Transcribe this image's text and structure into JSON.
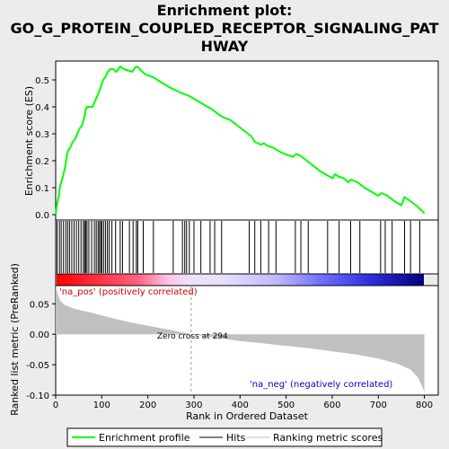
{
  "chart_data": {
    "type": "line",
    "title_lines": [
      "Enrichment plot:",
      "GO_G_PROTEIN_COUPLED_RECEPTOR_SIGNALING_PAT",
      "HWAY"
    ],
    "xlabel": "Rank in Ordered Dataset",
    "xlim": [
      0,
      830
    ],
    "x_ticks": [
      0,
      100,
      200,
      300,
      400,
      500,
      600,
      700,
      800
    ],
    "es_panel": {
      "ylabel": "Enrichment score (ES)",
      "ylim": [
        -0.02,
        0.57
      ],
      "y_ticks": [
        0.0,
        0.1,
        0.2,
        0.3,
        0.4,
        0.5
      ],
      "y_tick_labels": [
        "0.0",
        "0.1",
        "0.2",
        "0.3",
        "0.4",
        "0.5"
      ],
      "series_name": "Enrichment profile",
      "color": "#00ff00",
      "x": [
        0,
        3,
        7,
        10,
        14,
        17,
        21,
        24,
        28,
        32,
        37,
        42,
        47,
        52,
        57,
        62,
        65,
        68,
        72,
        80,
        85,
        90,
        95,
        99,
        103,
        108,
        113,
        118,
        125,
        132,
        140,
        148,
        157,
        166,
        172,
        177,
        185,
        195,
        212,
        230,
        250,
        275,
        290,
        300,
        320,
        340,
        355,
        365,
        380,
        395,
        410,
        425,
        432,
        438,
        445,
        452,
        460,
        470,
        480,
        490,
        497,
        505,
        515,
        522,
        530,
        545,
        560,
        575,
        590,
        601,
        606,
        615,
        625,
        635,
        641,
        655,
        670,
        690,
        700,
        706,
        720,
        735,
        750,
        757,
        770,
        785,
        800
      ],
      "y": [
        0.0,
        0.04,
        0.07,
        0.11,
        0.13,
        0.15,
        0.18,
        0.22,
        0.24,
        0.25,
        0.27,
        0.28,
        0.3,
        0.32,
        0.33,
        0.36,
        0.39,
        0.4,
        0.4,
        0.4,
        0.42,
        0.44,
        0.46,
        0.48,
        0.5,
        0.51,
        0.53,
        0.54,
        0.54,
        0.53,
        0.55,
        0.54,
        0.535,
        0.53,
        0.545,
        0.55,
        0.535,
        0.52,
        0.51,
        0.49,
        0.47,
        0.45,
        0.44,
        0.43,
        0.41,
        0.39,
        0.37,
        0.36,
        0.35,
        0.33,
        0.31,
        0.29,
        0.27,
        0.265,
        0.26,
        0.265,
        0.255,
        0.25,
        0.24,
        0.23,
        0.225,
        0.22,
        0.215,
        0.225,
        0.22,
        0.2,
        0.18,
        0.16,
        0.145,
        0.135,
        0.15,
        0.14,
        0.135,
        0.12,
        0.13,
        0.12,
        0.1,
        0.08,
        0.07,
        0.08,
        0.07,
        0.05,
        0.035,
        0.065,
        0.05,
        0.03,
        0.005
      ]
    },
    "hits": [
      3,
      8,
      12,
      17,
      22,
      26,
      30,
      35,
      40,
      45,
      50,
      55,
      60,
      63,
      65,
      68,
      72,
      78,
      84,
      88,
      92,
      95,
      98,
      100,
      104,
      108,
      112,
      116,
      122,
      130,
      140,
      145,
      160,
      168,
      175,
      178,
      190,
      212,
      255,
      275,
      280,
      284,
      290,
      300,
      315,
      335,
      345,
      360,
      420,
      432,
      445,
      462,
      478,
      520,
      532,
      548,
      590,
      615,
      640,
      660,
      705,
      715,
      730,
      757,
      770,
      790
    ],
    "ranked_metric": {
      "ylabel": "Ranked list metric (PreRanked)",
      "ylim": [
        -0.1,
        0.08
      ],
      "y_ticks": [
        0.05,
        0.0,
        -0.05,
        -0.1
      ],
      "y_tick_labels": [
        "0.05",
        "0.00",
        "-0.05",
        "-0.10"
      ],
      "zero_cross": 294,
      "zero_cross_label": "Zero cross at 294",
      "pos_label": "'na_pos' (positively correlated)",
      "neg_label": "'na_neg' (negatively correlated)",
      "x": [
        0,
        5,
        10,
        20,
        40,
        80,
        120,
        160,
        200,
        250,
        294,
        350,
        400,
        450,
        500,
        550,
        600,
        650,
        700,
        740,
        770,
        785,
        795,
        800
      ],
      "y": [
        0.08,
        0.065,
        0.055,
        0.048,
        0.042,
        0.035,
        0.027,
        0.02,
        0.014,
        0.007,
        0.0,
        -0.006,
        -0.011,
        -0.015,
        -0.019,
        -0.023,
        -0.028,
        -0.033,
        -0.04,
        -0.048,
        -0.058,
        -0.07,
        -0.085,
        -0.095
      ]
    },
    "legend": {
      "placement": "bottom",
      "entries": [
        {
          "label": "Enrichment profile",
          "color": "#00ff00"
        },
        {
          "label": "Hits",
          "color": "#000000"
        },
        {
          "label": "Ranking metric scores",
          "color": "#c0c0c0"
        }
      ]
    }
  }
}
